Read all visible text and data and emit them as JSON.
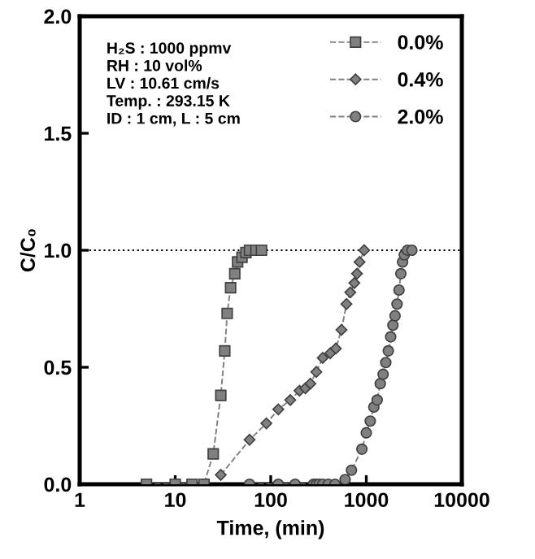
{
  "chart_data": {
    "type": "line",
    "xlabel": "Time, (min)",
    "ylabel": "C/C₀",
    "log": "x",
    "xlim": [
      1,
      10000
    ],
    "xticks": [
      1,
      10,
      100,
      1000,
      10000
    ],
    "ylim": [
      0,
      2.0
    ],
    "yticks": [
      {
        "value": 0,
        "label": "0.0"
      },
      {
        "value": 0.5,
        "label": "0.5"
      },
      {
        "value": 1.0,
        "label": "1.0"
      },
      {
        "value": 1.5,
        "label": "1.5"
      },
      {
        "value": 2.0,
        "label": "2.0"
      }
    ],
    "grid": false,
    "legend": "top right",
    "line_style": "dashed",
    "ref_lines": [
      {
        "axis": "y",
        "value": 1.0,
        "line_style": "dotted",
        "color": "#000000"
      }
    ],
    "annotations": [
      "H₂S : 1000 ppmv",
      "RH : 10 vol%",
      "LV : 10.61 cm/s",
      "Temp. : 293.15 K",
      "ID : 1 cm, L : 5 cm"
    ],
    "series": [
      {
        "name": "0.0%",
        "color": "#808080",
        "marker": "square",
        "x": [
          5,
          10,
          15,
          20,
          25,
          30,
          33,
          35,
          38,
          42,
          45,
          50,
          55,
          60,
          70,
          80
        ],
        "values": [
          0,
          0,
          0,
          0,
          0.13,
          0.38,
          0.57,
          0.73,
          0.84,
          0.9,
          0.95,
          0.97,
          0.99,
          1.0,
          1.0,
          1.0
        ]
      },
      {
        "name": "0.4%",
        "color": "#808080",
        "marker": "diamond",
        "x": [
          30,
          60,
          90,
          120,
          160,
          200,
          230,
          260,
          300,
          350,
          420,
          480,
          550,
          620,
          680,
          750,
          800,
          850,
          950
        ],
        "values": [
          0.04,
          0.19,
          0.26,
          0.32,
          0.36,
          0.4,
          0.41,
          0.43,
          0.48,
          0.54,
          0.56,
          0.58,
          0.66,
          0.77,
          0.82,
          0.86,
          0.9,
          0.95,
          1.0
        ]
      },
      {
        "name": "2.0%",
        "color": "#808080",
        "marker": "circle",
        "x": [
          60,
          120,
          180,
          280,
          300,
          320,
          350,
          400,
          470,
          600,
          700,
          900,
          1000,
          1100,
          1200,
          1300,
          1400,
          1500,
          1600,
          1700,
          1800,
          1900,
          2000,
          2100,
          2200,
          2300,
          2400,
          2500,
          2700,
          3000
        ],
        "values": [
          0,
          0,
          0,
          0,
          0,
          0,
          0,
          0,
          0,
          0.02,
          0.06,
          0.15,
          0.22,
          0.27,
          0.33,
          0.36,
          0.43,
          0.47,
          0.52,
          0.57,
          0.63,
          0.68,
          0.72,
          0.77,
          0.83,
          0.9,
          0.95,
          0.98,
          1.0,
          1.0
        ]
      }
    ]
  }
}
